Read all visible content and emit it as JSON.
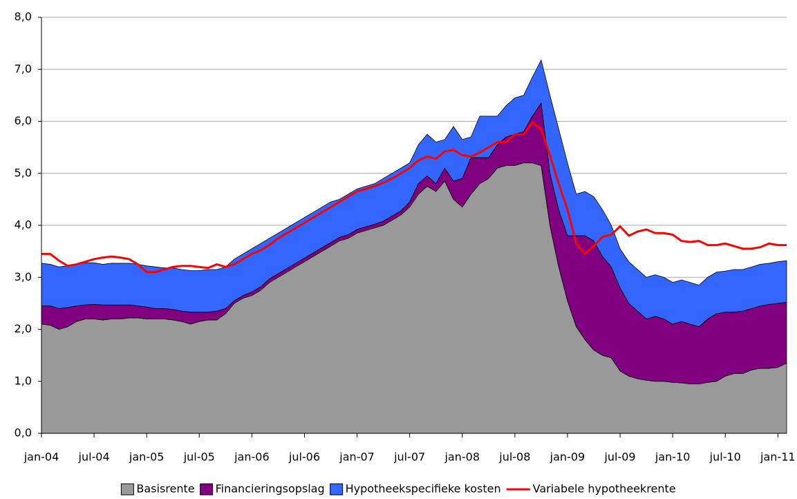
{
  "chart_data": {
    "type": "stacked_area_line",
    "categories": [
      "jan-04",
      null,
      null,
      null,
      null,
      null,
      "jul-04",
      null,
      null,
      null,
      null,
      null,
      "jan-05",
      null,
      null,
      null,
      null,
      null,
      "jul-05",
      null,
      null,
      null,
      null,
      null,
      "jan-06",
      null,
      null,
      null,
      null,
      null,
      "jul-06",
      null,
      null,
      null,
      null,
      null,
      "jan-07",
      null,
      null,
      null,
      null,
      null,
      "jul-07",
      null,
      null,
      null,
      null,
      null,
      "jan-08",
      null,
      null,
      null,
      null,
      null,
      "jul-08",
      null,
      null,
      null,
      null,
      null,
      "jan-09",
      null,
      null,
      null,
      null,
      null,
      "jul-09",
      null,
      null,
      null,
      null,
      null,
      "jan-10",
      null,
      null,
      null,
      null,
      null,
      "jul-10",
      null,
      null,
      null,
      null,
      null,
      "jan-11",
      null
    ],
    "series": [
      {
        "name": "Basisrente",
        "color": "#999999",
        "kind": "area",
        "values": [
          2.1,
          2.08,
          2.0,
          2.05,
          2.15,
          2.2,
          2.2,
          2.18,
          2.2,
          2.2,
          2.22,
          2.22,
          2.2,
          2.2,
          2.2,
          2.18,
          2.15,
          2.1,
          2.15,
          2.18,
          2.18,
          2.3,
          2.5,
          2.6,
          2.65,
          2.75,
          2.9,
          3.0,
          3.1,
          3.2,
          3.3,
          3.4,
          3.5,
          3.6,
          3.7,
          3.75,
          3.85,
          3.9,
          3.95,
          4.0,
          4.1,
          4.2,
          4.35,
          4.6,
          4.75,
          4.65,
          4.85,
          4.5,
          4.35,
          4.6,
          4.8,
          4.9,
          5.1,
          5.15,
          5.15,
          5.2,
          5.2,
          5.15,
          4.0,
          3.2,
          2.55,
          2.05,
          1.8,
          1.6,
          1.5,
          1.45,
          1.2,
          1.1,
          1.05,
          1.02,
          1.0,
          1.0,
          0.98,
          0.97,
          0.95,
          0.95,
          0.98,
          1.0,
          1.1,
          1.15,
          1.15,
          1.22,
          1.25,
          1.25,
          1.27,
          1.35
        ]
      },
      {
        "name": "Financieringsopslag",
        "color": "#800080",
        "kind": "area",
        "values": [
          0.35,
          0.37,
          0.4,
          0.37,
          0.3,
          0.27,
          0.28,
          0.29,
          0.27,
          0.27,
          0.25,
          0.23,
          0.23,
          0.2,
          0.2,
          0.2,
          0.2,
          0.23,
          0.18,
          0.15,
          0.17,
          0.1,
          0.05,
          0.05,
          0.07,
          0.07,
          0.07,
          0.07,
          0.07,
          0.07,
          0.07,
          0.07,
          0.07,
          0.07,
          0.07,
          0.07,
          0.07,
          0.07,
          0.07,
          0.08,
          0.08,
          0.08,
          0.1,
          0.2,
          0.2,
          0.15,
          0.25,
          0.35,
          0.55,
          0.7,
          0.5,
          0.4,
          0.45,
          0.55,
          0.6,
          0.6,
          0.9,
          1.2,
          1.0,
          1.1,
          1.25,
          1.75,
          2.0,
          2.1,
          1.9,
          1.75,
          1.6,
          1.4,
          1.3,
          1.18,
          1.25,
          1.2,
          1.12,
          1.18,
          1.15,
          1.1,
          1.22,
          1.3,
          1.23,
          1.18,
          1.2,
          1.18,
          1.2,
          1.23,
          1.23,
          1.17
        ]
      },
      {
        "name": "Hypotheekspecifieke kosten",
        "color": "#3366ff",
        "kind": "area",
        "values": [
          0.82,
          0.8,
          0.8,
          0.8,
          0.8,
          0.81,
          0.8,
          0.78,
          0.8,
          0.8,
          0.8,
          0.8,
          0.79,
          0.8,
          0.78,
          0.8,
          0.8,
          0.8,
          0.8,
          0.82,
          0.8,
          0.8,
          0.8,
          0.8,
          0.83,
          0.83,
          0.78,
          0.78,
          0.78,
          0.78,
          0.78,
          0.78,
          0.78,
          0.78,
          0.73,
          0.78,
          0.78,
          0.78,
          0.78,
          0.82,
          0.82,
          0.82,
          0.75,
          0.75,
          0.8,
          0.8,
          0.55,
          1.05,
          0.75,
          0.4,
          0.8,
          0.8,
          0.55,
          0.6,
          0.7,
          0.7,
          0.75,
          0.83,
          1.5,
          1.55,
          1.4,
          0.8,
          0.85,
          0.85,
          0.9,
          0.8,
          0.75,
          0.8,
          0.8,
          0.8,
          0.8,
          0.8,
          0.8,
          0.8,
          0.8,
          0.8,
          0.8,
          0.8,
          0.79,
          0.82,
          0.8,
          0.8,
          0.8,
          0.79,
          0.8,
          0.8
        ]
      },
      {
        "name": "Variabele hypotheekrente",
        "color": "#ff0000",
        "kind": "line",
        "values": [
          3.45,
          3.45,
          3.32,
          3.22,
          3.25,
          3.3,
          3.35,
          3.38,
          3.4,
          3.38,
          3.35,
          3.25,
          3.1,
          3.1,
          3.15,
          3.2,
          3.22,
          3.22,
          3.2,
          3.18,
          3.25,
          3.2,
          3.25,
          3.35,
          3.45,
          3.52,
          3.62,
          3.75,
          3.85,
          3.95,
          4.05,
          4.15,
          4.25,
          4.35,
          4.45,
          4.55,
          4.65,
          4.7,
          4.75,
          4.82,
          4.9,
          5.0,
          5.1,
          5.25,
          5.32,
          5.28,
          5.42,
          5.45,
          5.35,
          5.32,
          5.4,
          5.5,
          5.6,
          5.6,
          5.75,
          5.75,
          5.98,
          5.85,
          5.35,
          4.8,
          4.3,
          3.65,
          3.45,
          3.6,
          3.78,
          3.82,
          3.98,
          3.8,
          3.88,
          3.92,
          3.85,
          3.85,
          3.82,
          3.7,
          3.68,
          3.7,
          3.62,
          3.62,
          3.65,
          3.6,
          3.55,
          3.55,
          3.58,
          3.65,
          3.62,
          3.62
        ]
      }
    ],
    "ylim": [
      0,
      8
    ],
    "yticks": [
      {
        "value": 0,
        "label": "0,0"
      },
      {
        "value": 1,
        "label": "1,0"
      },
      {
        "value": 2,
        "label": "2,0"
      },
      {
        "value": 3,
        "label": "3,0"
      },
      {
        "value": 4,
        "label": "4,0"
      },
      {
        "value": 5,
        "label": "5,0"
      },
      {
        "value": 6,
        "label": "6,0"
      },
      {
        "value": 7,
        "label": "7,0"
      },
      {
        "value": 8,
        "label": "8,0"
      }
    ],
    "grid": true,
    "legend": "bottom"
  }
}
